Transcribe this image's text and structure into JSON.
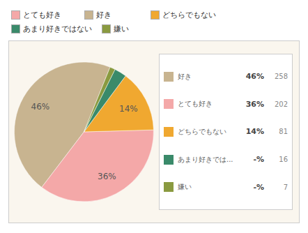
{
  "chart_data": {
    "type": "pie",
    "categories": [
      "好き",
      "とても好き",
      "どちらでもない",
      "あまり好きでは...",
      "嫌い"
    ],
    "values": [
      258,
      202,
      81,
      16,
      7
    ],
    "colors": [
      "#c8b490",
      "#f4a8a8",
      "#f0a830",
      "#3a8a6a",
      "#8a9a40"
    ],
    "slice_labels": [
      "46%",
      "36%",
      "14%",
      null,
      null
    ],
    "shares": [
      46,
      36,
      14,
      3,
      1
    ],
    "share_labels": [
      "46%",
      "36%",
      "14%",
      "-%",
      "-%"
    ],
    "legend": "right",
    "top_legend": [
      {
        "name": "とても好き",
        "color": "#f4a8a8"
      },
      {
        "name": "好き",
        "color": "#c8b490"
      },
      {
        "name": "どちらでもない",
        "color": "#f0a830"
      },
      {
        "name": "あまり好きではない",
        "color": "#3a8a6a"
      },
      {
        "name": "嫌い",
        "color": "#8a9a40"
      }
    ]
  }
}
